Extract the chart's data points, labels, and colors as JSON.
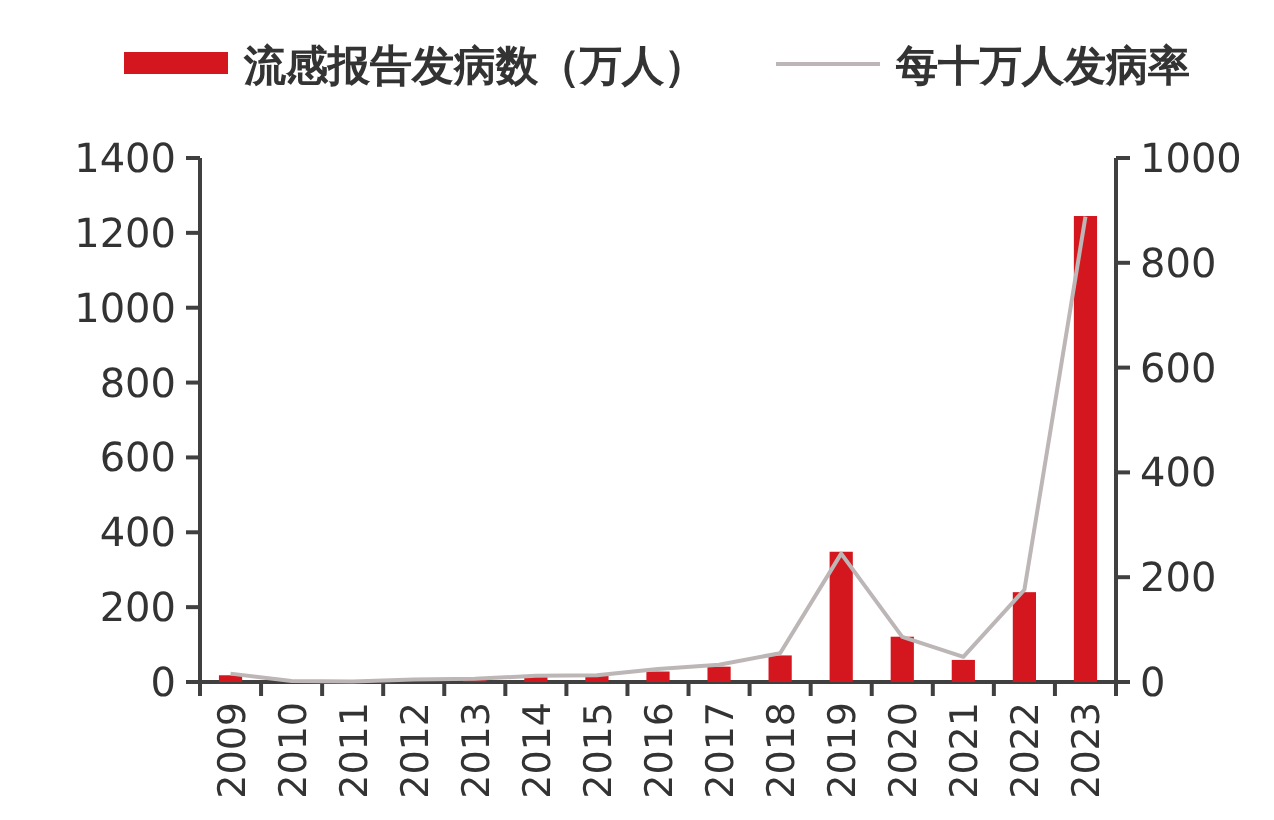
{
  "chart_data": {
    "type": "bar",
    "categories": [
      "2009",
      "2010",
      "2011",
      "2012",
      "2013",
      "2014",
      "2015",
      "2016",
      "2017",
      "2018",
      "2019",
      "2020",
      "2021",
      "2022",
      "2023"
    ],
    "series": [
      {
        "name": "流感报告发病数（万人）",
        "color": "#d4171e",
        "values": [
          18,
          null,
          1,
          null,
          5,
          18,
          18,
          28,
          41,
          71,
          348,
          121,
          59,
          240,
          1245
        ]
      },
      {
        "name": "每十万人发病率",
        "type": "line",
        "axis": "y2",
        "color": "#bdb6b6",
        "values": [
          16,
          2,
          1,
          5,
          6,
          12,
          13,
          25,
          33,
          55,
          245,
          86,
          48,
          176,
          888
        ]
      }
    ],
    "ylim": [
      0,
      1400
    ],
    "yticks": [
      0,
      200,
      400,
      600,
      800,
      1000,
      1200,
      1400
    ],
    "y2lim": [
      0,
      1000
    ],
    "y2ticks": [
      0,
      200,
      400,
      600,
      800,
      1000
    ],
    "legend": "top"
  }
}
